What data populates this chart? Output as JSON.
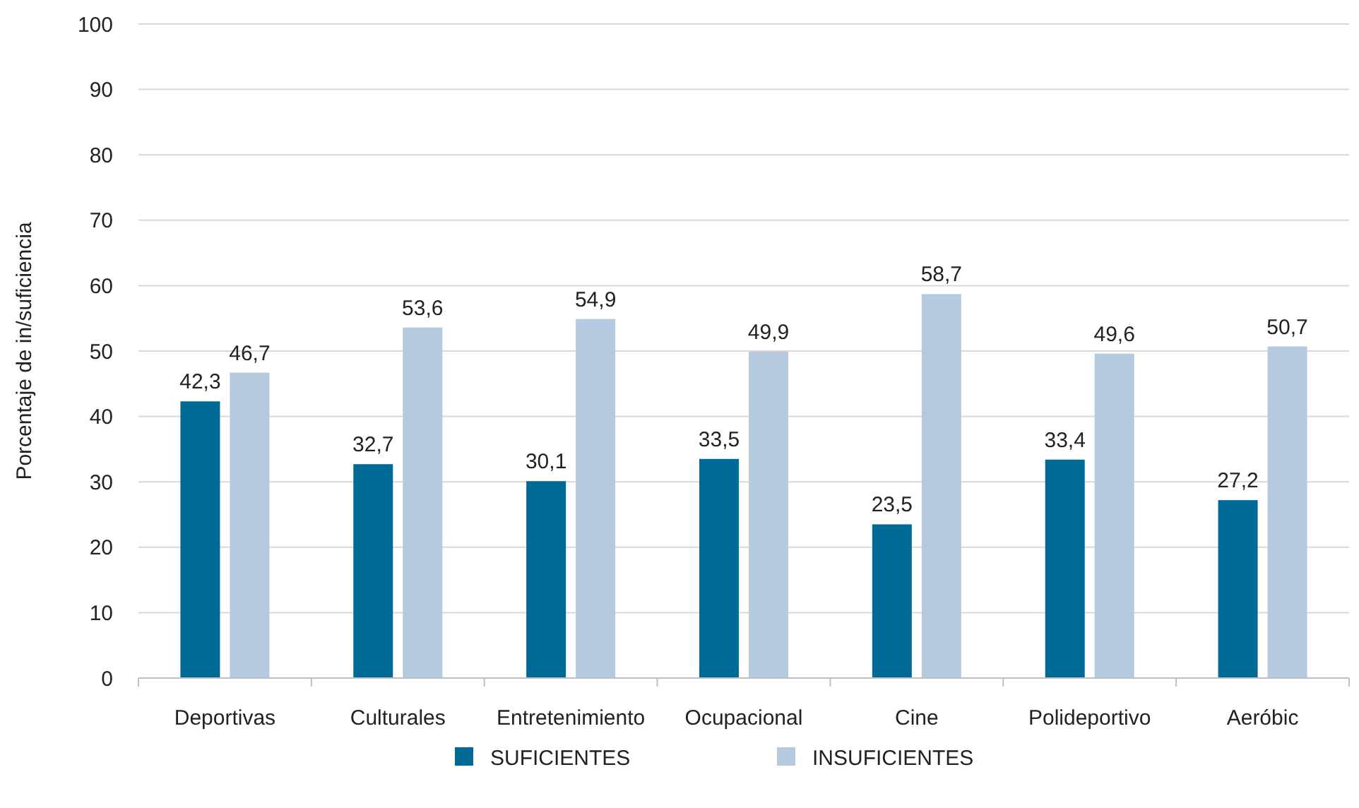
{
  "chart_data": {
    "type": "bar",
    "ylabel": "Porcentaje de in/suficiencia",
    "categories": [
      "Deportivas",
      "Culturales",
      "Entretenimiento",
      "Ocupacional",
      "Cine",
      "Polideportivo",
      "Aeróbic"
    ],
    "series": [
      {
        "name": "SUFICIENTES",
        "color": "#006a96",
        "values": [
          42.3,
          32.7,
          30.1,
          33.5,
          23.5,
          33.4,
          27.2
        ],
        "value_labels": [
          "42,3",
          "32,7",
          "30,1",
          "33,5",
          "23,5",
          "33,4",
          "27,2"
        ]
      },
      {
        "name": "INSUFICIENTES",
        "color": "#b5cadf",
        "values": [
          46.7,
          53.6,
          54.9,
          49.9,
          58.7,
          49.6,
          50.7
        ],
        "value_labels": [
          "46,7",
          "53,6",
          "54,9",
          "49,9",
          "58,7",
          "49,6",
          "50,7"
        ]
      }
    ],
    "ylim": [
      0,
      100
    ],
    "yticks": [
      0,
      10,
      20,
      30,
      40,
      50,
      60,
      70,
      80,
      90,
      100
    ],
    "grid": "y",
    "legend": "bottom"
  }
}
